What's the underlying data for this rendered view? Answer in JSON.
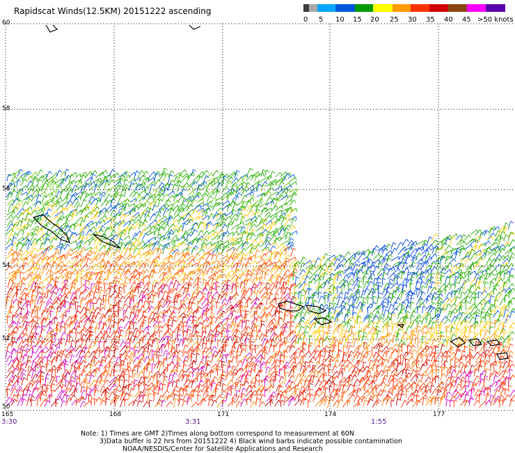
{
  "title": "Rapidscat Winds(12.5KM) 20151222 ascending",
  "legend": {
    "labels": [
      "0",
      "5",
      "10",
      "15",
      "20",
      "25",
      "30",
      "35",
      "40",
      "45",
      ">50 knots"
    ],
    "colors": [
      "#3c3c3c",
      "#a8a8a8",
      "#00a6ff",
      "#0033cc",
      "#009900",
      "#33cc00",
      "#ffff00",
      "#ffcc00",
      "#ff8800",
      "#ff5500",
      "#e80000",
      "#b00000",
      "#804010",
      "#c86400",
      "#ff33cc",
      "#cc00ff",
      "#6600aa"
    ]
  },
  "map": {
    "lat_labels": [
      "60",
      "58",
      "56",
      "54",
      "52",
      "50"
    ],
    "lon_labels": [
      "165",
      "168",
      "171",
      "174",
      "177"
    ],
    "time_labels": [
      "3:30",
      "3:31",
      "1:55"
    ]
  },
  "notes": {
    "line1": "Note: 1) Times are GMT 2)Times along bottom correspond to measurement at 60N",
    "line2": "3)Data buffer is 22 hrs from 20151222 4) Black wind barbs indicate possible contamination",
    "line3": "NOAA/NESDIS/Center for Satellite Applications and Research"
  }
}
